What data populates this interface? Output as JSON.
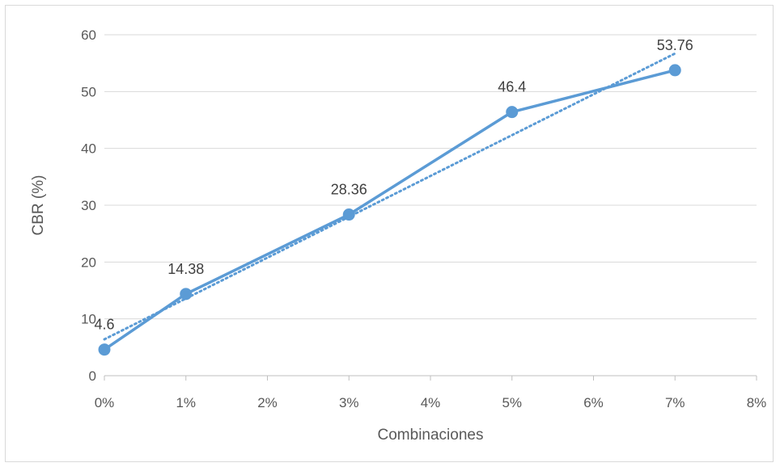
{
  "chart_data": {
    "type": "line",
    "title": "",
    "xlabel": "Combinaciones",
    "ylabel": "CBR (%)",
    "xlim": [
      0,
      8
    ],
    "ylim": [
      0,
      60
    ],
    "x_ticks": [
      0,
      1,
      2,
      3,
      4,
      5,
      6,
      7,
      8
    ],
    "x_tick_labels": [
      "0%",
      "1%",
      "2%",
      "3%",
      "4%",
      "5%",
      "6%",
      "7%",
      "8%"
    ],
    "y_ticks": [
      0,
      10,
      20,
      30,
      40,
      50,
      60
    ],
    "y_tick_labels": [
      "0",
      "10",
      "20",
      "30",
      "40",
      "50",
      "60"
    ],
    "grid": "horizontal",
    "legend": "none",
    "series": [
      {
        "x": [
          0,
          1,
          3,
          5,
          7
        ],
        "y": [
          4.6,
          14.38,
          28.36,
          46.4,
          53.76
        ],
        "data_labels": [
          "4.6",
          "14.38",
          "28.36",
          "46.4",
          "53.76"
        ],
        "color": "#5b9bd5",
        "marker": "circle"
      }
    ],
    "trendline": {
      "type": "linear",
      "style": "dotted",
      "color": "#5b9bd5",
      "x_range": [
        0,
        7
      ],
      "y_range": [
        6.4,
        56.7
      ]
    }
  }
}
